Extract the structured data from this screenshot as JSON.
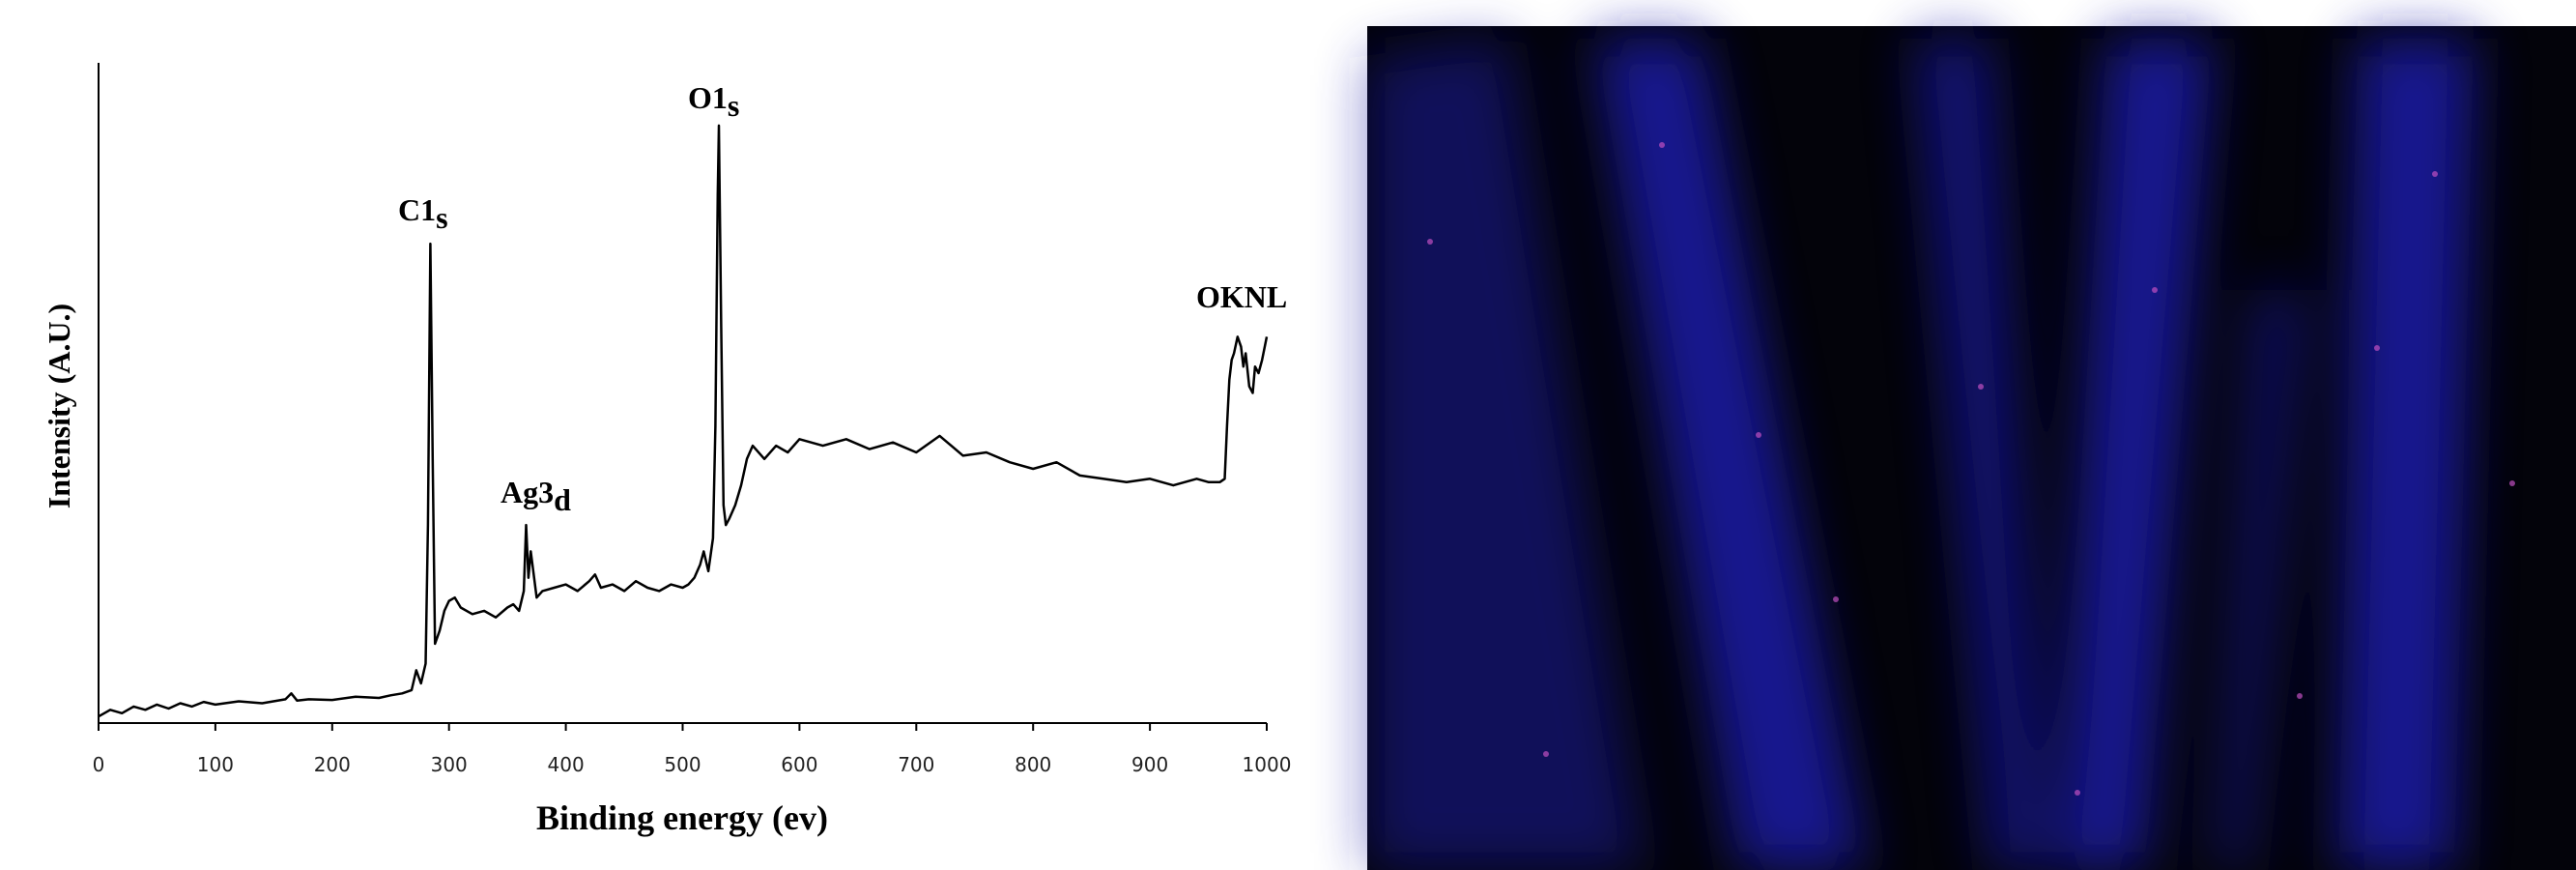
{
  "chart_data": {
    "type": "line",
    "xlabel": "Binding energy (ev)",
    "ylabel": "Intensity (A.U.)",
    "annotations": [
      {
        "text": "C1",
        "sub": "s"
      },
      {
        "text": "Ag3",
        "sub": "d"
      },
      {
        "text": "O1",
        "sub": "s"
      },
      {
        "text": "OKNL"
      }
    ],
    "x": [
      0,
      10,
      20,
      30,
      40,
      50,
      60,
      70,
      80,
      90,
      100,
      120,
      140,
      160,
      165,
      170,
      180,
      200,
      220,
      240,
      250,
      260,
      268,
      272,
      276,
      280,
      282,
      284,
      286,
      288,
      292,
      296,
      300,
      305,
      310,
      320,
      330,
      340,
      350,
      355,
      360,
      364,
      366,
      368,
      370,
      375,
      380,
      390,
      400,
      410,
      420,
      425,
      430,
      440,
      450,
      460,
      470,
      480,
      490,
      500,
      505,
      510,
      515,
      518,
      522,
      526,
      528,
      530,
      531,
      533,
      535,
      537,
      540,
      545,
      550,
      555,
      560,
      570,
      580,
      590,
      600,
      620,
      640,
      660,
      680,
      700,
      720,
      740,
      760,
      780,
      800,
      820,
      840,
      860,
      880,
      900,
      920,
      940,
      950,
      960,
      964,
      966,
      968,
      970,
      972,
      975,
      978,
      980,
      982,
      985,
      988,
      990,
      993,
      996,
      1000
    ],
    "series": [
      {
        "color": "#000000",
        "values": [
          1,
          2,
          1.5,
          2.5,
          2,
          2.8,
          2.2,
          3,
          2.5,
          3.2,
          2.8,
          3.3,
          3,
          3.6,
          4.5,
          3.4,
          3.6,
          3.5,
          4,
          3.8,
          4.2,
          4.5,
          5,
          8,
          6,
          9,
          30,
          72.6,
          40,
          12,
          14,
          17,
          18.5,
          19,
          17.5,
          16.5,
          17,
          16,
          17.5,
          18,
          17,
          20,
          30,
          22,
          26,
          19,
          20,
          20.5,
          21,
          20,
          21.5,
          22.5,
          20.5,
          21,
          20,
          21.5,
          20.5,
          20,
          21,
          20.5,
          21,
          22,
          24,
          26,
          23,
          28,
          45,
          80,
          90.5,
          60,
          33,
          30,
          31,
          33,
          36,
          40,
          42,
          40,
          42,
          41,
          43,
          42,
          43,
          41.5,
          42.5,
          41,
          43.5,
          40.5,
          41,
          39.5,
          38.5,
          39.5,
          37.5,
          37,
          36.5,
          37,
          36,
          37,
          36.5,
          36.5,
          37,
          45,
          52,
          55,
          56,
          58.5,
          57,
          54,
          56,
          51,
          50,
          54,
          53,
          55,
          58.5
        ]
      }
    ],
    "xlim": [
      0,
      1000
    ],
    "xticks": [
      0,
      100,
      200,
      300,
      400,
      500,
      600,
      700,
      800,
      900,
      1000
    ],
    "ylim": [
      0,
      100
    ]
  }
}
